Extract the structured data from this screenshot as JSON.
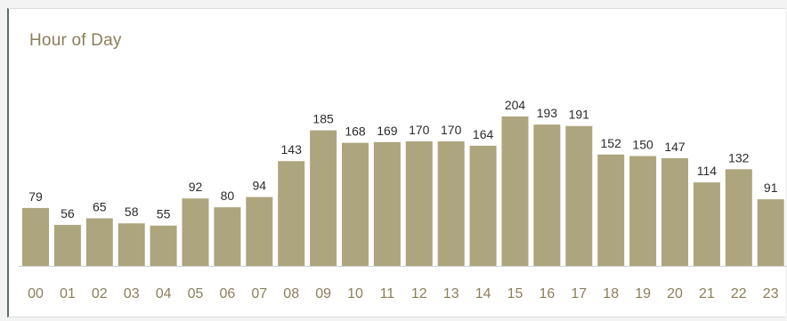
{
  "panel": {
    "title": "Hour of Day"
  },
  "colors": {
    "bar": "#aca57d",
    "axis": "#d0d0d0",
    "title": "#8c7e5b",
    "tick_label": "#8c7e5b",
    "data_label": "#2b2b2b",
    "panel_border_left": "#5e6f62"
  },
  "chart_data": {
    "type": "bar",
    "title": "Hour of Day",
    "xlabel": "",
    "ylabel": "",
    "categories": [
      "00",
      "01",
      "02",
      "03",
      "04",
      "05",
      "06",
      "07",
      "08",
      "09",
      "10",
      "11",
      "12",
      "13",
      "14",
      "15",
      "16",
      "17",
      "18",
      "19",
      "20",
      "21",
      "22",
      "23"
    ],
    "values": [
      79,
      56,
      65,
      58,
      55,
      92,
      80,
      94,
      143,
      185,
      168,
      169,
      170,
      170,
      164,
      204,
      193,
      191,
      152,
      150,
      147,
      114,
      132,
      91
    ],
    "ylim": [
      0,
      204
    ],
    "grid": false,
    "legend": "none",
    "data_labels": true
  }
}
